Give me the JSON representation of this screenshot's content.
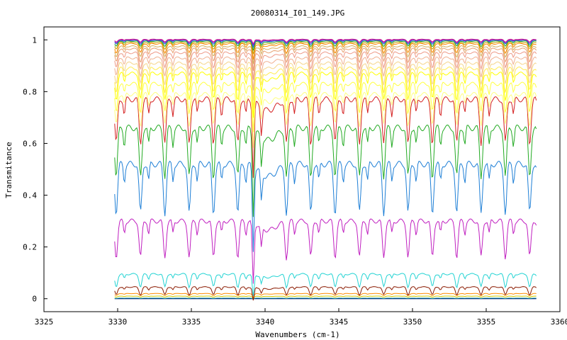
{
  "chart_data": {
    "type": "line",
    "title": "20080314_I01_149.JPG",
    "xlabel": "Wavenumbers (cm-1)",
    "ylabel": "Transmitance",
    "xlim": [
      3325,
      3360
    ],
    "ylim": [
      -0.05,
      1.05
    ],
    "x_ticks": [
      3325,
      3330,
      3335,
      3340,
      3345,
      3350,
      3355,
      3360
    ],
    "x_tick_labels": [
      "3325",
      "3330",
      "3335",
      "3340",
      "3345",
      "3350",
      "3355",
      "3360"
    ],
    "y_ticks": [
      0,
      0.2,
      0.4,
      0.6,
      0.8,
      1
    ],
    "y_tick_labels": [
      "0",
      "0.2",
      "0.4",
      "0.6",
      "0.8",
      "1"
    ],
    "x_range": [
      3329.8,
      3358.4
    ],
    "grid": false,
    "legend": "none",
    "absorption_line_positions": [
      3329.9,
      3331.55,
      3333.2,
      3334.85,
      3336.5,
      3338.15,
      3339.2,
      3341.45,
      3343.1,
      3344.75,
      3346.4,
      3348.05,
      3349.7,
      3351.35,
      3353.0,
      3354.65,
      3356.3,
      3357.95
    ],
    "series": [
      {
        "color": "#000080",
        "baseline": 0.0,
        "depth": 0.0
      },
      {
        "color": "#008b8b",
        "baseline": 0.002,
        "depth": 0.001
      },
      {
        "color": "#cccc00",
        "baseline": 0.01,
        "depth": 0.004
      },
      {
        "color": "#ff8c00",
        "baseline": 0.02,
        "depth": 0.008
      },
      {
        "color": "#8b1a00",
        "baseline": 0.045,
        "depth": 0.03
      },
      {
        "color": "#22d3d3",
        "baseline": 0.095,
        "depth": 0.05
      },
      {
        "color": "#c020c0",
        "baseline": 0.3,
        "depth": 0.14
      },
      {
        "color": "#1e7fd6",
        "baseline": 0.52,
        "depth": 0.19
      },
      {
        "color": "#22aa22",
        "baseline": 0.66,
        "depth": 0.19
      },
      {
        "color": "#d42020",
        "baseline": 0.77,
        "depth": 0.17
      },
      {
        "color": "#ffff80",
        "baseline": 0.79,
        "depth": 0.12
      },
      {
        "color": "#ffff40",
        "baseline": 0.83,
        "depth": 0.11
      },
      {
        "color": "#ffff00",
        "baseline": 0.87,
        "depth": 0.1
      },
      {
        "color": "#ffeb50",
        "baseline": 0.89,
        "depth": 0.09
      },
      {
        "color": "#f5d58a",
        "baseline": 0.91,
        "depth": 0.08
      },
      {
        "color": "#f0b090",
        "baseline": 0.93,
        "depth": 0.07
      },
      {
        "color": "#ee9a88",
        "baseline": 0.95,
        "depth": 0.06
      },
      {
        "color": "#e8a070",
        "baseline": 0.965,
        "depth": 0.05
      },
      {
        "color": "#d4b060",
        "baseline": 0.975,
        "depth": 0.04
      },
      {
        "color": "#ff8800",
        "baseline": 0.985,
        "depth": 0.035
      },
      {
        "color": "#c0a000",
        "baseline": 0.99,
        "depth": 0.025
      },
      {
        "color": "#20a020",
        "baseline": 0.995,
        "depth": 0.02
      },
      {
        "color": "#2060e0",
        "baseline": 0.998,
        "depth": 0.015
      },
      {
        "color": "#8020c0",
        "baseline": 1.0,
        "depth": 0.012
      },
      {
        "color": "#d02090",
        "baseline": 1.002,
        "depth": 0.01
      }
    ]
  }
}
